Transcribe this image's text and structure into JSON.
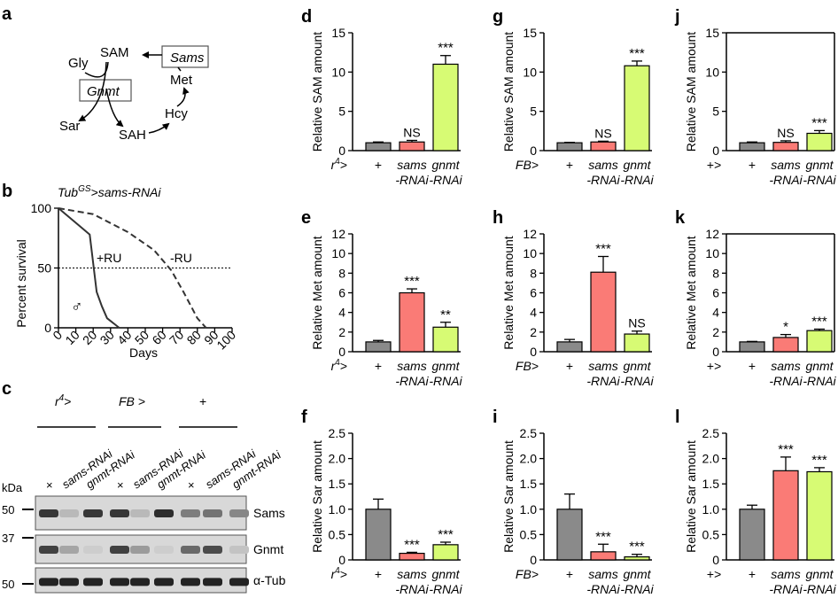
{
  "colors": {
    "plus": "#8a8a8a",
    "sams": "#fa7b76",
    "gnmt": "#d7fb74",
    "stroke": "#000000"
  },
  "panel_a": {
    "label": "a",
    "nodes": {
      "gly": "Gly",
      "sam": "SAM",
      "sams": "Sams",
      "gnmt": "Gnmt",
      "met": "Met",
      "sar": "Sar",
      "sah": "SAH",
      "hcy": "Hcy"
    }
  },
  "panel_b": {
    "label": "b",
    "title_main": "Tub",
    "title_sup": "GS",
    "title_rest": ">sams-RNAi",
    "ylabel": "Percent survival",
    "xlabel": "Days",
    "yticks": [
      "0",
      "50",
      "100"
    ],
    "xticks": [
      "0",
      "10",
      "20",
      "30",
      "40",
      "50",
      "60",
      "70",
      "80",
      "90",
      "100"
    ],
    "ru_plus": "+RU",
    "ru_minus": "-RU",
    "sex": "♂",
    "plus_ru_days": [
      0,
      18,
      22,
      25,
      28,
      35
    ],
    "plus_ru_survival": [
      100,
      78,
      30,
      18,
      8,
      0
    ],
    "minus_ru_days": [
      0,
      20,
      40,
      55,
      65,
      72,
      80,
      85
    ],
    "minus_ru_survival": [
      100,
      95,
      80,
      65,
      48,
      30,
      8,
      0
    ],
    "median_line": 50
  },
  "panel_c": {
    "label": "c",
    "group1_main": "r",
    "group1_sup": "4",
    "group1_rest": ">",
    "group2": "FB >",
    "group3": "+",
    "lanes": [
      "×",
      "sams-RNAi",
      "gnmt-RNAi",
      "×",
      "sams-RNAi",
      "gnmt-RNAi",
      "×",
      "sams-RNAi",
      "gnmt-RNAi"
    ],
    "kda": "kDa",
    "markers": [
      "50",
      "37",
      "50"
    ],
    "blots": [
      "Sams",
      "Gnmt",
      "α-Tub"
    ],
    "band_intensity": {
      "Sams": [
        0.85,
        0.2,
        0.85,
        0.85,
        0.2,
        0.9,
        0.5,
        0.55,
        0.45
      ],
      "Gnmt": [
        0.8,
        0.3,
        0.1,
        0.8,
        0.35,
        0.1,
        0.6,
        0.75,
        0.15
      ],
      "α-Tub": [
        0.95,
        0.95,
        0.95,
        0.95,
        0.95,
        0.95,
        0.95,
        0.95,
        0.95
      ]
    }
  },
  "chart_data": [
    {
      "id": "d",
      "type": "bar",
      "ylabel": "Relative SAM amount",
      "ylim": [
        0,
        15
      ],
      "yticks": [
        "0",
        "5",
        "10",
        "15"
      ],
      "genotype": "r",
      "genotype_sup": "4",
      "genotype_rest": ">",
      "categories": [
        "+",
        "sams\n-RNAi",
        "gnmt\n-RNAi"
      ],
      "values": [
        1.0,
        1.1,
        11.0
      ],
      "errors": [
        0.1,
        0.2,
        1.1
      ],
      "sig": [
        "",
        "NS",
        "***"
      ]
    },
    {
      "id": "e",
      "type": "bar",
      "ylabel": "Relative Met amount",
      "ylim": [
        0,
        12
      ],
      "yticks": [
        "0",
        "2",
        "4",
        "6",
        "8",
        "10",
        "12"
      ],
      "genotype": "r",
      "genotype_sup": "4",
      "genotype_rest": ">",
      "categories": [
        "+",
        "sams\n-RNAi",
        "gnmt\n-RNAi"
      ],
      "values": [
        1.0,
        6.0,
        2.5
      ],
      "errors": [
        0.15,
        0.4,
        0.5
      ],
      "sig": [
        "",
        "***",
        "**"
      ]
    },
    {
      "id": "f",
      "type": "bar",
      "ylabel": "Relative Sar amount",
      "ylim": [
        0,
        2.5
      ],
      "yticks": [
        "0",
        "0.5",
        "1.0",
        "1.5",
        "2.0",
        "2.5"
      ],
      "genotype": "r",
      "genotype_sup": "4",
      "genotype_rest": ">",
      "categories": [
        "+",
        "sams\n-RNAi",
        "gnmt\n-RNAi"
      ],
      "values": [
        1.0,
        0.13,
        0.3
      ],
      "errors": [
        0.2,
        0.02,
        0.05
      ],
      "sig": [
        "",
        "***",
        "***"
      ]
    },
    {
      "id": "g",
      "type": "bar",
      "ylabel": "Relative SAM amount",
      "ylim": [
        0,
        15
      ],
      "yticks": [
        "0",
        "5",
        "10",
        "15"
      ],
      "genotype": "FB>",
      "genotype_sup": "",
      "genotype_rest": "",
      "categories": [
        "+",
        "sams\n-RNAi",
        "gnmt\n-RNAi"
      ],
      "values": [
        1.0,
        1.1,
        10.8
      ],
      "errors": [
        0.05,
        0.1,
        0.6
      ],
      "sig": [
        "",
        "NS",
        "***"
      ]
    },
    {
      "id": "h",
      "type": "bar",
      "ylabel": "Relative Met amount",
      "ylim": [
        0,
        12
      ],
      "yticks": [
        "0",
        "2",
        "4",
        "6",
        "8",
        "10",
        "12"
      ],
      "genotype": "FB>",
      "genotype_sup": "",
      "genotype_rest": "",
      "categories": [
        "+",
        "sams\n-RNAi",
        "gnmt\n-RNAi"
      ],
      "values": [
        1.0,
        8.1,
        1.8
      ],
      "errors": [
        0.25,
        1.6,
        0.3
      ],
      "sig": [
        "",
        "***",
        "NS"
      ]
    },
    {
      "id": "i",
      "type": "bar",
      "ylabel": "Relative Sar amount",
      "ylim": [
        0,
        2.5
      ],
      "yticks": [
        "0",
        "0.5",
        "1.0",
        "1.5",
        "2.0",
        "2.5"
      ],
      "genotype": "FB>",
      "genotype_sup": "",
      "genotype_rest": "",
      "categories": [
        "+",
        "sams\n-RNAi",
        "gnmt\n-RNAi"
      ],
      "values": [
        1.0,
        0.16,
        0.06
      ],
      "errors": [
        0.3,
        0.15,
        0.05
      ],
      "sig": [
        "",
        "***",
        "***"
      ]
    },
    {
      "id": "j",
      "type": "bar",
      "ylabel": "Relative SAM amount",
      "ylim": [
        0,
        15
      ],
      "yticks": [
        "0",
        "5",
        "10",
        "15"
      ],
      "genotype": "+>",
      "genotype_sup": "",
      "genotype_rest": "",
      "categories": [
        "+",
        "sams\n-RNAi",
        "gnmt\n-RNAi"
      ],
      "values": [
        1.0,
        1.05,
        2.2
      ],
      "errors": [
        0.1,
        0.2,
        0.35
      ],
      "sig": [
        "",
        "NS",
        "***"
      ]
    },
    {
      "id": "k",
      "type": "bar",
      "ylabel": "Relative Met amount",
      "ylim": [
        0,
        12
      ],
      "yticks": [
        "0",
        "2",
        "4",
        "6",
        "8",
        "10",
        "12"
      ],
      "genotype": "+>",
      "genotype_sup": "",
      "genotype_rest": "",
      "categories": [
        "+",
        "sams\n-RNAi",
        "gnmt\n-RNAi"
      ],
      "values": [
        1.0,
        1.45,
        2.15
      ],
      "errors": [
        0.05,
        0.3,
        0.15
      ],
      "sig": [
        "",
        "*",
        "***"
      ]
    },
    {
      "id": "l",
      "type": "bar",
      "ylabel": "Relative Sar amount",
      "ylim": [
        0,
        2.5
      ],
      "yticks": [
        "0",
        "0.5",
        "1.0",
        "1.5",
        "2.0",
        "2.5"
      ],
      "genotype": "+>",
      "genotype_sup": "",
      "genotype_rest": "",
      "categories": [
        "+",
        "sams\n-RNAi",
        "gnmt\n-RNAi"
      ],
      "values": [
        1.0,
        1.76,
        1.74
      ],
      "errors": [
        0.08,
        0.27,
        0.08
      ],
      "sig": [
        "",
        "***",
        "***"
      ]
    }
  ]
}
